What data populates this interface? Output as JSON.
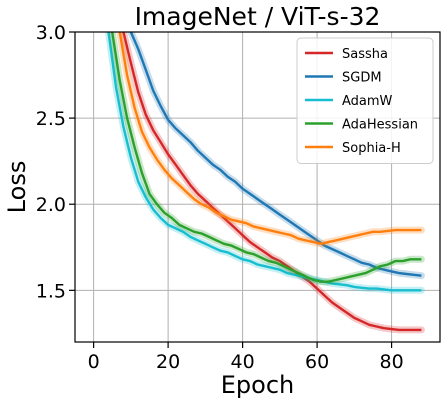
{
  "chart_data": {
    "type": "line",
    "title": "ImageNet / ViT-s-32",
    "xlabel": "Epoch",
    "ylabel": "Loss",
    "xlim": [
      -5,
      93
    ],
    "ylim": [
      1.2,
      3.0
    ],
    "xticks": [
      0,
      20,
      40,
      60,
      80
    ],
    "yticks": [
      1.5,
      2.0,
      2.5,
      3.0
    ],
    "ytick_labels": [
      "1.5",
      "2.0",
      "2.5",
      "3.0"
    ],
    "grid": true,
    "legend_position": "top-right",
    "series": [
      {
        "name": "Sassha",
        "color": "#d62728",
        "x": [
          8,
          10,
          12,
          14,
          16,
          18,
          20,
          22,
          24,
          26,
          28,
          30,
          32,
          34,
          36,
          38,
          40,
          42,
          44,
          46,
          48,
          50,
          52,
          54,
          56,
          58,
          60,
          62,
          64,
          66,
          68,
          70,
          72,
          74,
          76,
          78,
          80,
          82,
          84,
          86,
          88
        ],
        "y": [
          3.0,
          2.82,
          2.65,
          2.52,
          2.43,
          2.36,
          2.29,
          2.23,
          2.17,
          2.11,
          2.06,
          2.02,
          1.98,
          1.94,
          1.9,
          1.86,
          1.82,
          1.78,
          1.75,
          1.72,
          1.69,
          1.67,
          1.64,
          1.61,
          1.58,
          1.55,
          1.51,
          1.47,
          1.43,
          1.4,
          1.37,
          1.34,
          1.32,
          1.3,
          1.29,
          1.28,
          1.275,
          1.27,
          1.27,
          1.27,
          1.27
        ]
      },
      {
        "name": "SGDM",
        "color": "#1f77b4",
        "x": [
          10,
          12,
          14,
          16,
          18,
          20,
          22,
          24,
          26,
          28,
          30,
          32,
          34,
          36,
          38,
          40,
          42,
          44,
          46,
          48,
          50,
          52,
          54,
          56,
          58,
          60,
          62,
          64,
          66,
          68,
          70,
          72,
          74,
          76,
          78,
          80,
          82,
          84,
          86,
          88
        ],
        "y": [
          3.0,
          2.9,
          2.78,
          2.66,
          2.57,
          2.49,
          2.44,
          2.4,
          2.36,
          2.31,
          2.27,
          2.23,
          2.2,
          2.16,
          2.13,
          2.09,
          2.06,
          2.03,
          2.0,
          1.97,
          1.94,
          1.91,
          1.88,
          1.85,
          1.82,
          1.79,
          1.76,
          1.74,
          1.72,
          1.7,
          1.68,
          1.66,
          1.65,
          1.63,
          1.62,
          1.61,
          1.6,
          1.595,
          1.59,
          1.585
        ]
      },
      {
        "name": "AdamW",
        "color": "#17becf",
        "x": [
          4,
          6,
          8,
          10,
          12,
          14,
          16,
          18,
          20,
          22,
          24,
          26,
          28,
          30,
          32,
          34,
          36,
          38,
          40,
          42,
          44,
          46,
          48,
          50,
          52,
          54,
          56,
          58,
          60,
          62,
          64,
          66,
          68,
          70,
          72,
          74,
          76,
          78,
          80,
          82,
          84,
          86,
          88
        ],
        "y": [
          3.0,
          2.68,
          2.45,
          2.27,
          2.13,
          2.04,
          1.97,
          1.92,
          1.88,
          1.86,
          1.84,
          1.81,
          1.79,
          1.77,
          1.75,
          1.73,
          1.72,
          1.7,
          1.68,
          1.67,
          1.65,
          1.64,
          1.63,
          1.62,
          1.6,
          1.59,
          1.58,
          1.57,
          1.56,
          1.55,
          1.54,
          1.535,
          1.53,
          1.52,
          1.515,
          1.51,
          1.51,
          1.505,
          1.5,
          1.5,
          1.5,
          1.5,
          1.5
        ]
      },
      {
        "name": "AdaHessian",
        "color": "#2ca02c",
        "x": [
          5,
          7,
          9,
          11,
          13,
          15,
          17,
          19,
          21,
          23,
          25,
          27,
          29,
          31,
          33,
          35,
          37,
          39,
          41,
          43,
          45,
          47,
          49,
          51,
          53,
          55,
          57,
          59,
          61,
          63,
          65,
          67,
          69,
          71,
          73,
          75,
          77,
          79,
          81,
          83,
          85,
          88
        ],
        "y": [
          3.0,
          2.72,
          2.5,
          2.33,
          2.18,
          2.06,
          2.0,
          1.95,
          1.92,
          1.88,
          1.86,
          1.84,
          1.83,
          1.81,
          1.79,
          1.77,
          1.76,
          1.74,
          1.72,
          1.71,
          1.69,
          1.67,
          1.66,
          1.64,
          1.62,
          1.6,
          1.58,
          1.56,
          1.55,
          1.55,
          1.56,
          1.57,
          1.58,
          1.59,
          1.6,
          1.62,
          1.64,
          1.65,
          1.67,
          1.67,
          1.68,
          1.68
        ]
      },
      {
        "name": "Sophia-H",
        "color": "#ff7f0e",
        "x": [
          7,
          9,
          11,
          13,
          15,
          17,
          19,
          21,
          23,
          25,
          27,
          29,
          31,
          33,
          35,
          37,
          39,
          41,
          43,
          45,
          47,
          49,
          51,
          53,
          55,
          57,
          59,
          61,
          63,
          65,
          67,
          69,
          71,
          73,
          75,
          77,
          79,
          81,
          83,
          85,
          88
        ],
        "y": [
          3.0,
          2.75,
          2.56,
          2.42,
          2.33,
          2.26,
          2.2,
          2.15,
          2.11,
          2.07,
          2.03,
          2.0,
          1.98,
          1.95,
          1.93,
          1.91,
          1.9,
          1.89,
          1.87,
          1.86,
          1.85,
          1.84,
          1.83,
          1.82,
          1.8,
          1.79,
          1.78,
          1.77,
          1.78,
          1.79,
          1.8,
          1.81,
          1.82,
          1.83,
          1.84,
          1.84,
          1.845,
          1.85,
          1.85,
          1.85,
          1.85
        ]
      }
    ]
  }
}
